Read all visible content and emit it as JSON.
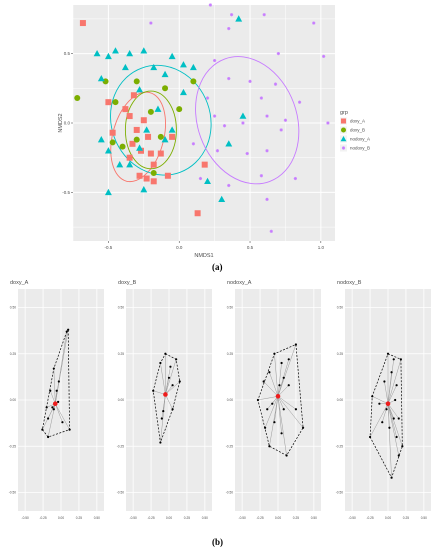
{
  "figure": {
    "caption_a": "(a)",
    "caption_b": "(b)"
  },
  "chart_data": [
    {
      "type": "scatter",
      "xlabel": "NMDS1",
      "ylabel": "NMDS2",
      "xlim": [
        -0.75,
        1.1
      ],
      "ylim": [
        -0.85,
        0.85
      ],
      "xticks": [
        -0.5,
        0.0,
        0.5,
        1.0
      ],
      "xtick_labels": [
        "-0.5",
        "0.0",
        "0.5",
        "1.0"
      ],
      "yticks": [
        -0.5,
        0.0,
        0.5
      ],
      "ytick_labels": [
        "-0.5",
        "0.0",
        "0.5"
      ],
      "grid": true,
      "legend_title": "grp",
      "legend_position": "right",
      "series": [
        {
          "name": "doxy_A",
          "color": "#F8766D",
          "shape": "square",
          "points": [
            [
              -0.68,
              0.72
            ],
            [
              -0.5,
              0.15
            ],
            [
              -0.47,
              -0.07
            ],
            [
              -0.38,
              0.1
            ],
            [
              -0.32,
              0.2
            ],
            [
              -0.35,
              0.05
            ],
            [
              -0.3,
              -0.05
            ],
            [
              -0.33,
              -0.15
            ],
            [
              -0.27,
              -0.2
            ],
            [
              -0.22,
              -0.1
            ],
            [
              -0.2,
              -0.22
            ],
            [
              -0.35,
              -0.25
            ],
            [
              -0.28,
              -0.38
            ],
            [
              -0.23,
              -0.4
            ],
            [
              -0.18,
              -0.3
            ],
            [
              -0.13,
              -0.22
            ],
            [
              -0.05,
              -0.1
            ],
            [
              -0.18,
              -0.42
            ],
            [
              -0.08,
              -0.38
            ],
            [
              0.13,
              -0.65
            ],
            [
              0.18,
              -0.3
            ],
            [
              -0.25,
              0.02
            ]
          ],
          "ellipse": {
            "cx": -0.29,
            "cy": -0.1,
            "rx": 0.18,
            "ry": 0.33,
            "angle": -15
          }
        },
        {
          "name": "doxy_B",
          "color": "#7CAE00",
          "shape": "circle",
          "points": [
            [
              -0.72,
              0.18
            ],
            [
              -0.52,
              0.3
            ],
            [
              -0.47,
              -0.14
            ],
            [
              -0.4,
              -0.17
            ],
            [
              -0.3,
              0.3
            ],
            [
              -0.2,
              0.08
            ],
            [
              -0.13,
              -0.1
            ],
            [
              -0.18,
              -0.36
            ],
            [
              0.0,
              0.1
            ],
            [
              0.1,
              0.3
            ],
            [
              -0.1,
              0.25
            ],
            [
              -0.3,
              -0.12
            ],
            [
              -0.45,
              0.15
            ]
          ],
          "ellipse": {
            "cx": -0.2,
            "cy": -0.05,
            "rx": 0.18,
            "ry": 0.28,
            "angle": 0
          }
        },
        {
          "name": "nodoxy_A",
          "color": "#00BFC4",
          "shape": "triangle",
          "points": [
            [
              -0.58,
              0.5
            ],
            [
              -0.5,
              0.48
            ],
            [
              -0.45,
              0.52
            ],
            [
              -0.38,
              0.4
            ],
            [
              -0.35,
              0.5
            ],
            [
              -0.25,
              0.52
            ],
            [
              -0.05,
              0.48
            ],
            [
              0.03,
              0.42
            ],
            [
              -0.18,
              0.4
            ],
            [
              -0.1,
              0.35
            ],
            [
              -0.28,
              0.24
            ],
            [
              -0.55,
              -0.12
            ],
            [
              -0.5,
              -0.2
            ],
            [
              -0.42,
              -0.3
            ],
            [
              -0.28,
              -0.18
            ],
            [
              -0.23,
              -0.05
            ],
            [
              -0.1,
              -0.12
            ],
            [
              -0.05,
              -0.05
            ],
            [
              0.03,
              0.22
            ],
            [
              -0.5,
              -0.5
            ],
            [
              -0.25,
              -0.48
            ],
            [
              0.2,
              -0.42
            ],
            [
              0.3,
              -0.55
            ],
            [
              0.45,
              0.05
            ],
            [
              0.35,
              -0.15
            ],
            [
              -0.55,
              0.32
            ],
            [
              0.42,
              0.75
            ],
            [
              0.1,
              0.4
            ],
            [
              -0.15,
              0.1
            ],
            [
              -0.35,
              -0.3
            ]
          ],
          "ellipse": {
            "cx": -0.13,
            "cy": 0.02,
            "rx": 0.35,
            "ry": 0.4,
            "angle": 20
          }
        },
        {
          "name": "nodoxy_B",
          "color": "#C77CFF",
          "shape": "cross",
          "points": [
            [
              0.22,
              0.85
            ],
            [
              0.37,
              0.78
            ],
            [
              -0.2,
              0.72
            ],
            [
              0.35,
              0.68
            ],
            [
              0.6,
              0.78
            ],
            [
              0.95,
              0.72
            ],
            [
              0.7,
              0.5
            ],
            [
              1.02,
              0.48
            ],
            [
              0.25,
              0.45
            ],
            [
              0.35,
              0.32
            ],
            [
              0.5,
              0.3
            ],
            [
              0.68,
              0.28
            ],
            [
              0.2,
              0.18
            ],
            [
              0.58,
              0.18
            ],
            [
              0.85,
              0.15
            ],
            [
              0.25,
              0.05
            ],
            [
              0.32,
              -0.02
            ],
            [
              0.45,
              0.0
            ],
            [
              0.62,
              0.05
            ],
            [
              0.75,
              0.02
            ],
            [
              1.05,
              0.0
            ],
            [
              0.1,
              -0.15
            ],
            [
              0.27,
              -0.2
            ],
            [
              0.48,
              -0.22
            ],
            [
              0.62,
              -0.2
            ],
            [
              0.72,
              -0.05
            ],
            [
              0.15,
              -0.4
            ],
            [
              0.35,
              -0.45
            ],
            [
              0.58,
              -0.38
            ],
            [
              0.82,
              -0.4
            ],
            [
              0.65,
              -0.78
            ],
            [
              0.62,
              -0.55
            ]
          ],
          "ellipse": {
            "cx": 0.48,
            "cy": 0.02,
            "rx": 0.35,
            "ry": 0.47,
            "angle": 20
          }
        }
      ]
    },
    {
      "type": "scatter",
      "title": "doxy_A",
      "xlim": [
        -0.6,
        0.6
      ],
      "ylim": [
        -0.6,
        0.6
      ],
      "xticks": [
        -0.5,
        -0.25,
        0.0,
        0.25,
        0.5
      ],
      "xtick_labels": [
        "-0.50",
        "-0.25",
        "0.00",
        "0.25",
        "0.50"
      ],
      "yticks": [
        -0.5,
        -0.25,
        0.0,
        0.25,
        0.5
      ],
      "ytick_labels": [
        "-0.50",
        "-0.25",
        "0.00",
        "0.25",
        "0.50"
      ],
      "centroid": [
        -0.08,
        -0.02
      ],
      "hull": [
        [
          0.08,
          0.37
        ],
        [
          -0.1,
          0.17
        ],
        [
          -0.26,
          -0.16
        ],
        [
          -0.18,
          -0.2
        ],
        [
          0.12,
          -0.16
        ],
        [
          0.1,
          0.38
        ]
      ],
      "points": [
        [
          0.08,
          0.37
        ],
        [
          -0.1,
          0.17
        ],
        [
          -0.03,
          0.1
        ],
        [
          -0.06,
          0.05
        ],
        [
          -0.15,
          0.05
        ],
        [
          -0.04,
          -0.01
        ],
        [
          -0.2,
          -0.04
        ],
        [
          -0.12,
          -0.04
        ],
        [
          -0.18,
          -0.1
        ],
        [
          -0.26,
          -0.16
        ],
        [
          -0.18,
          -0.2
        ],
        [
          0.12,
          -0.16
        ],
        [
          0.02,
          -0.12
        ],
        [
          0.1,
          0.38
        ],
        [
          -0.1,
          -0.05
        ]
      ]
    },
    {
      "type": "scatter",
      "title": "doxy_B",
      "xlim": [
        -0.6,
        0.6
      ],
      "ylim": [
        -0.6,
        0.6
      ],
      "xticks": [
        -0.5,
        -0.25,
        0.0,
        0.25,
        0.5
      ],
      "xtick_labels": [
        "-0.50",
        "-0.25",
        "0.00",
        "0.25",
        "0.50"
      ],
      "yticks": [
        -0.5,
        -0.25,
        0.0,
        0.25,
        0.5
      ],
      "ytick_labels": [
        "-0.50",
        "-0.25",
        "0.00",
        "0.25",
        "0.50"
      ],
      "centroid": [
        -0.05,
        0.03
      ],
      "hull": [
        [
          -0.05,
          0.25
        ],
        [
          0.1,
          0.22
        ],
        [
          0.15,
          0.1
        ],
        [
          0.05,
          -0.05
        ],
        [
          -0.12,
          -0.23
        ],
        [
          -0.22,
          0.05
        ],
        [
          -0.12,
          0.2
        ]
      ],
      "points": [
        [
          -0.05,
          0.25
        ],
        [
          0.1,
          0.22
        ],
        [
          0.02,
          0.18
        ],
        [
          0.15,
          0.1
        ],
        [
          0.05,
          0.08
        ],
        [
          -0.12,
          0.2
        ],
        [
          -0.22,
          0.05
        ],
        [
          0.05,
          -0.05
        ],
        [
          -0.1,
          -0.1
        ],
        [
          -0.12,
          -0.23
        ],
        [
          -0.08,
          -0.06
        ],
        [
          0.0,
          0.12
        ]
      ]
    },
    {
      "type": "scatter",
      "title": "nodoxy_A",
      "xlim": [
        -0.6,
        0.6
      ],
      "ylim": [
        -0.6,
        0.6
      ],
      "xticks": [
        -0.5,
        -0.25,
        0.0,
        0.25,
        0.5
      ],
      "xtick_labels": [
        "-0.50",
        "-0.25",
        "0.00",
        "0.25",
        "0.50"
      ],
      "yticks": [
        -0.5,
        -0.25,
        0.0,
        0.25,
        0.5
      ],
      "ytick_labels": [
        "-0.50",
        "-0.25",
        "0.00",
        "0.25",
        "0.50"
      ],
      "centroid": [
        0.0,
        0.02
      ],
      "hull": [
        [
          0.25,
          0.3
        ],
        [
          0.35,
          -0.15
        ],
        [
          0.12,
          -0.3
        ],
        [
          -0.12,
          -0.25
        ],
        [
          -0.28,
          0.0
        ],
        [
          -0.05,
          0.25
        ]
      ],
      "points": [
        [
          0.25,
          0.3
        ],
        [
          0.15,
          0.22
        ],
        [
          0.05,
          0.2
        ],
        [
          -0.05,
          0.25
        ],
        [
          0.08,
          0.12
        ],
        [
          0.15,
          0.08
        ],
        [
          -0.12,
          0.15
        ],
        [
          -0.2,
          0.1
        ],
        [
          -0.28,
          0.0
        ],
        [
          0.35,
          -0.15
        ],
        [
          0.25,
          -0.05
        ],
        [
          0.12,
          -0.3
        ],
        [
          0.05,
          -0.18
        ],
        [
          -0.05,
          -0.12
        ],
        [
          -0.12,
          -0.25
        ],
        [
          -0.18,
          -0.15
        ],
        [
          0.08,
          -0.05
        ],
        [
          -0.08,
          -0.02
        ],
        [
          0.02,
          0.08
        ],
        [
          -0.15,
          -0.05
        ]
      ]
    },
    {
      "type": "scatter",
      "title": "nodoxy_B",
      "xlim": [
        -0.6,
        0.6
      ],
      "ylim": [
        -0.6,
        0.6
      ],
      "xticks": [
        -0.5,
        -0.25,
        0.0,
        0.25,
        0.5
      ],
      "xtick_labels": [
        "-0.50",
        "-0.25",
        "0.00",
        "0.25",
        "0.50"
      ],
      "yticks": [
        -0.5,
        -0.25,
        0.0,
        0.25,
        0.5
      ],
      "ytick_labels": [
        "-0.50",
        "-0.25",
        "0.00",
        "0.25",
        "0.50"
      ],
      "centroid": [
        0.0,
        -0.02
      ],
      "hull": [
        [
          0.0,
          0.25
        ],
        [
          0.18,
          0.22
        ],
        [
          0.2,
          -0.25
        ],
        [
          0.05,
          -0.42
        ],
        [
          -0.25,
          -0.2
        ],
        [
          -0.22,
          0.02
        ]
      ],
      "points": [
        [
          0.0,
          0.25
        ],
        [
          0.08,
          0.22
        ],
        [
          0.18,
          0.22
        ],
        [
          0.05,
          0.15
        ],
        [
          0.12,
          0.08
        ],
        [
          -0.05,
          0.1
        ],
        [
          -0.22,
          0.02
        ],
        [
          -0.12,
          -0.02
        ],
        [
          0.1,
          0.0
        ],
        [
          0.15,
          -0.1
        ],
        [
          0.2,
          -0.25
        ],
        [
          0.12,
          -0.2
        ],
        [
          0.05,
          -0.42
        ],
        [
          0.02,
          -0.15
        ],
        [
          -0.08,
          -0.12
        ],
        [
          -0.25,
          -0.2
        ],
        [
          -0.02,
          -0.05
        ],
        [
          0.15,
          -0.3
        ],
        [
          0.08,
          -0.1
        ]
      ]
    }
  ]
}
